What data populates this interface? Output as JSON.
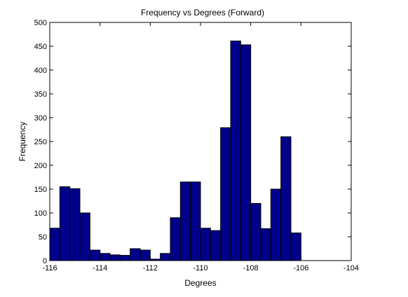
{
  "chart_data": {
    "type": "bar",
    "title": "Frequency vs Degrees (Forward)",
    "xlabel": "Degrees",
    "ylabel": "Frequency",
    "xlim": [
      -116,
      -104
    ],
    "ylim": [
      0,
      500
    ],
    "xticks": [
      -116,
      -114,
      -112,
      -110,
      -108,
      -106,
      -104
    ],
    "yticks": [
      0,
      50,
      100,
      150,
      200,
      250,
      300,
      350,
      400,
      450,
      500
    ],
    "bin_start": -116.0,
    "bin_width": 0.4,
    "values": [
      68,
      155,
      151,
      100,
      22,
      15,
      12,
      11,
      25,
      22,
      3,
      15,
      90,
      165,
      165,
      68,
      63,
      279,
      461,
      453,
      120,
      67,
      150,
      260,
      58
    ],
    "bar_color": "#00008b",
    "edge_color": "#000000",
    "grid": false
  }
}
